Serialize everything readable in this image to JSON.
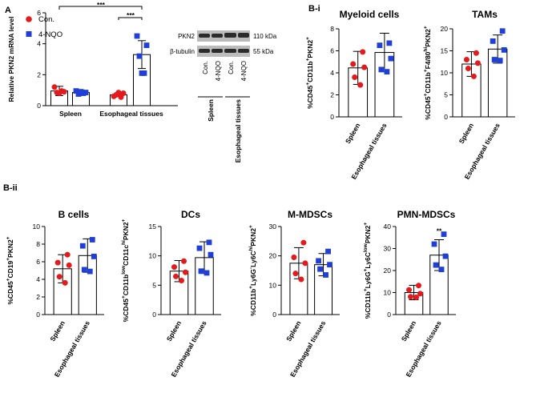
{
  "panels": {
    "A": "A",
    "Bi": "B-i",
    "Bii": "B-ii"
  },
  "legend": [
    {
      "name": "Con.",
      "color": "#e41a1c",
      "shape": "circle"
    },
    {
      "name": "4-NQO",
      "color": "#1f3fd6",
      "shape": "square"
    }
  ],
  "colors": {
    "red": "#e41a1c",
    "blue": "#1f3fd6",
    "band": "#2b2b2b",
    "blot_bg": "#bcbcbc"
  },
  "blot": {
    "rows": [
      {
        "label": "PKN2",
        "size": "110 kDa"
      },
      {
        "label": "β-tubulin",
        "size": "55 kDa"
      }
    ],
    "lanes": [
      "Con.",
      "4-NQO",
      "Con.",
      "4-NQO"
    ],
    "groups": [
      "Spleen",
      "Esophageal tissues"
    ]
  },
  "chart_data": [
    {
      "id": "A",
      "type": "bar",
      "title": "",
      "ylabel": "Relative PKN2 mRNA level",
      "ylim": [
        0,
        6
      ],
      "yticks": [
        "0",
        "2",
        "4",
        "6"
      ],
      "categories": [
        "Spleen",
        "Esophageal tissues"
      ],
      "series": [
        {
          "name": "Con.",
          "means": [
            0.95,
            0.7
          ],
          "sd": [
            0.3,
            0.12
          ],
          "points": [
            [
              1.2,
              0.9,
              0.85,
              0.95,
              0.8
            ],
            [
              0.6,
              0.8,
              0.7,
              0.55,
              0.85
            ]
          ]
        },
        {
          "name": "4-NQO",
          "means": [
            0.85,
            3.3
          ],
          "sd": [
            0.15,
            0.9
          ],
          "points": [
            [
              0.95,
              0.85,
              0.75,
              0.8,
              0.9
            ],
            [
              4.5,
              3.9,
              3.2,
              2.1,
              2.1
            ]
          ]
        }
      ],
      "significance": [
        {
          "between": "Con. Spleen vs 4-NQO Esophageal tissues",
          "label": "***"
        },
        {
          "between": "Con. vs 4-NQO Esophageal tissues",
          "label": "***"
        }
      ]
    },
    {
      "id": "Bi-myeloid",
      "type": "bar",
      "title": "Myeloid cells",
      "ylabel": "%CD45+CD11b+PKN2+",
      "ylim": [
        0,
        8
      ],
      "yticks": [
        "0",
        "2",
        "4",
        "6",
        "8"
      ],
      "categories": [
        "Spleen",
        "Esophageal tissues"
      ],
      "means": [
        4.45,
        5.85
      ],
      "sd": [
        1.5,
        1.75
      ],
      "points": [
        [
          5.9,
          4.8,
          4.5,
          3.6,
          2.9
        ],
        [
          6.7,
          6.5,
          5.3,
          4.3,
          4.1
        ]
      ],
      "significance": []
    },
    {
      "id": "Bi-tams",
      "type": "bar",
      "title": "TAMs",
      "ylabel": "%CD45+CD11b+F4/80hiPKN2+",
      "ylim": [
        0,
        20
      ],
      "yticks": [
        "0",
        "5",
        "10",
        "15",
        "20"
      ],
      "categories": [
        "Spleen",
        "Esophageal tissues"
      ],
      "means": [
        12,
        15.4
      ],
      "sd": [
        2.8,
        3.2
      ],
      "points": [
        [
          14.5,
          13,
          12.2,
          11,
          9.2
        ],
        [
          19.5,
          17.2,
          15.2,
          13,
          12.8
        ]
      ],
      "significance": []
    },
    {
      "id": "Bii-bcells",
      "type": "bar",
      "title": "B cells",
      "ylabel": "%CD45+CD19+PKN2+",
      "ylim": [
        0,
        10
      ],
      "yticks": [
        "0",
        "2",
        "4",
        "6",
        "8",
        "10"
      ],
      "categories": [
        "Spleen",
        "Esophageal tissues"
      ],
      "means": [
        5.2,
        6.7
      ],
      "sd": [
        1.6,
        1.9
      ],
      "points": [
        [
          6.8,
          5.9,
          5.6,
          4.3,
          3.6
        ],
        [
          8.5,
          7.8,
          6.6,
          5.1,
          4.9
        ]
      ],
      "significance": []
    },
    {
      "id": "Bii-dcs",
      "type": "bar",
      "title": "DCs",
      "ylabel": "%CD45+CD11blowCD11chiPKN2+",
      "ylim": [
        0,
        15
      ],
      "yticks": [
        "0",
        "5",
        "10",
        "15"
      ],
      "categories": [
        "Spleen",
        "Esophageal tissues"
      ],
      "means": [
        7.4,
        9.7
      ],
      "sd": [
        1.8,
        2.7
      ],
      "points": [
        [
          9.1,
          8.1,
          7.2,
          6.5,
          5.8
        ],
        [
          12.3,
          11.3,
          10.2,
          7.4,
          7.1
        ]
      ],
      "significance": []
    },
    {
      "id": "Bii-mmdscs",
      "type": "bar",
      "title": "M-MDSCs",
      "ylabel": "%CD11b+Ly6G-Ly6ChiPKN2+",
      "ylim": [
        0,
        30
      ],
      "yticks": [
        "0",
        "10",
        "20",
        "30"
      ],
      "categories": [
        "Spleen",
        "Esophageal tissues"
      ],
      "means": [
        17.5,
        17
      ],
      "sd": [
        5.3,
        3.8
      ],
      "points": [
        [
          24.5,
          19.5,
          17.5,
          14,
          12
        ],
        [
          21.5,
          18.3,
          17,
          15.5,
          13.5
        ]
      ],
      "significance": []
    },
    {
      "id": "Bii-pmnmdscs",
      "type": "bar",
      "title": "PMN-MDSCs",
      "ylabel": "%CD11b+Ly6G+Ly6ClowPKN2+",
      "ylim": [
        0,
        40
      ],
      "yticks": [
        "0",
        "10",
        "20",
        "30",
        "40"
      ],
      "categories": [
        "Spleen",
        "Esophageal tissues"
      ],
      "means": [
        10,
        27
      ],
      "sd": [
        3.3,
        7
      ],
      "points": [
        [
          13.2,
          11.2,
          9.5,
          8.1,
          7.8
        ],
        [
          36.5,
          32,
          26.5,
          22.5,
          20.5
        ]
      ],
      "significance": [
        {
          "between": "Spleen vs Esophageal tissues",
          "label": "**"
        }
      ]
    }
  ]
}
